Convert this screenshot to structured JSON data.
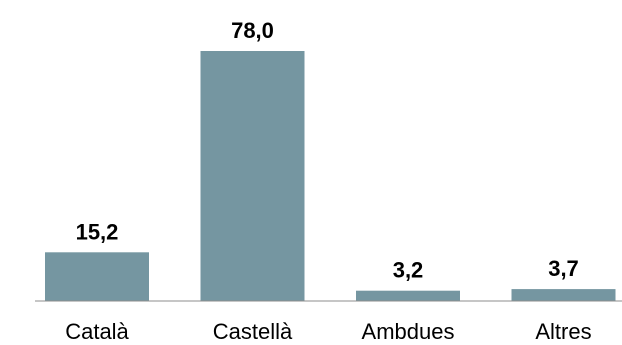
{
  "chart_data": {
    "type": "bar",
    "categories": [
      "Català",
      "Castellà",
      "Ambdues",
      "Altres"
    ],
    "values": [
      15.2,
      78.0,
      3.2,
      3.7
    ],
    "value_labels": [
      "15,2",
      "78,0",
      "3,2",
      "3,7"
    ],
    "ylim": [
      0,
      80
    ],
    "grid": false,
    "legend": "none",
    "bar_color": "#7596a1",
    "axis_color": "#8c8c8c"
  }
}
